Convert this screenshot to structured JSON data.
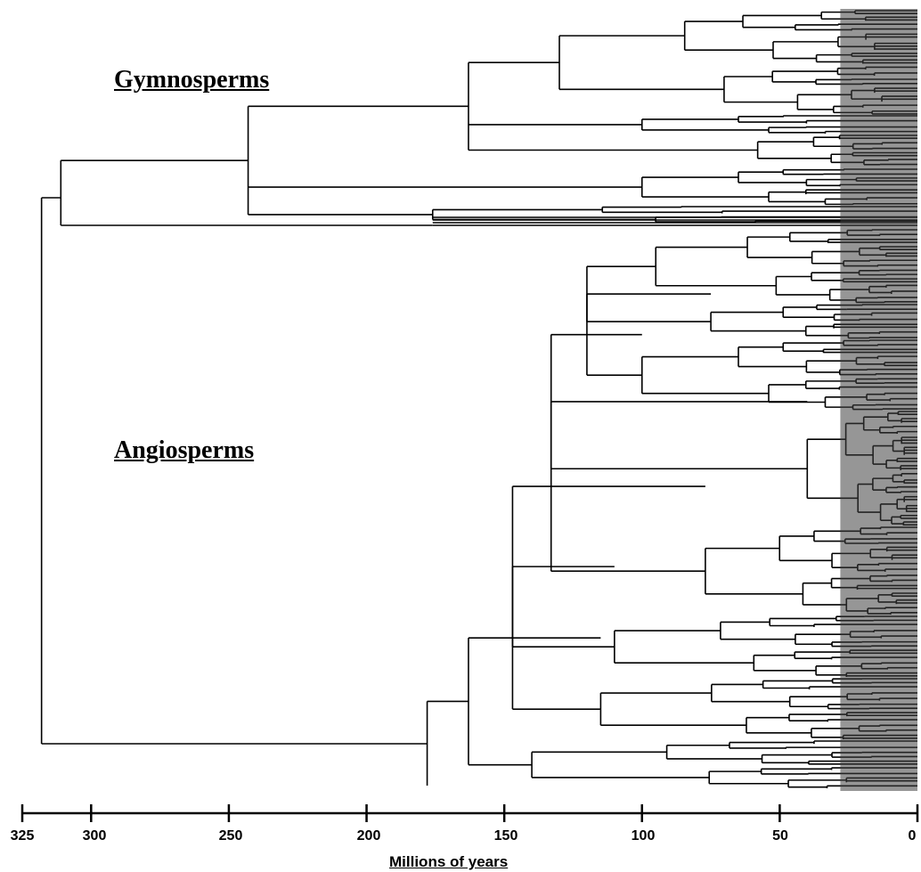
{
  "figure": {
    "clades": [
      {
        "label": "Gymnosperms"
      },
      {
        "label": "Angiosperms"
      }
    ],
    "axis": {
      "title": "Millions of years",
      "ticks": [
        "325",
        "300",
        "250",
        "200",
        "150",
        "100",
        "50",
        "0"
      ],
      "range": [
        325,
        0
      ]
    },
    "tree": {
      "root_age": 318,
      "gymnosperm_crown_age": 311,
      "angiosperm_crown_age": 178,
      "line_color": "#000000",
      "dense_tip_color": "#404040"
    }
  }
}
